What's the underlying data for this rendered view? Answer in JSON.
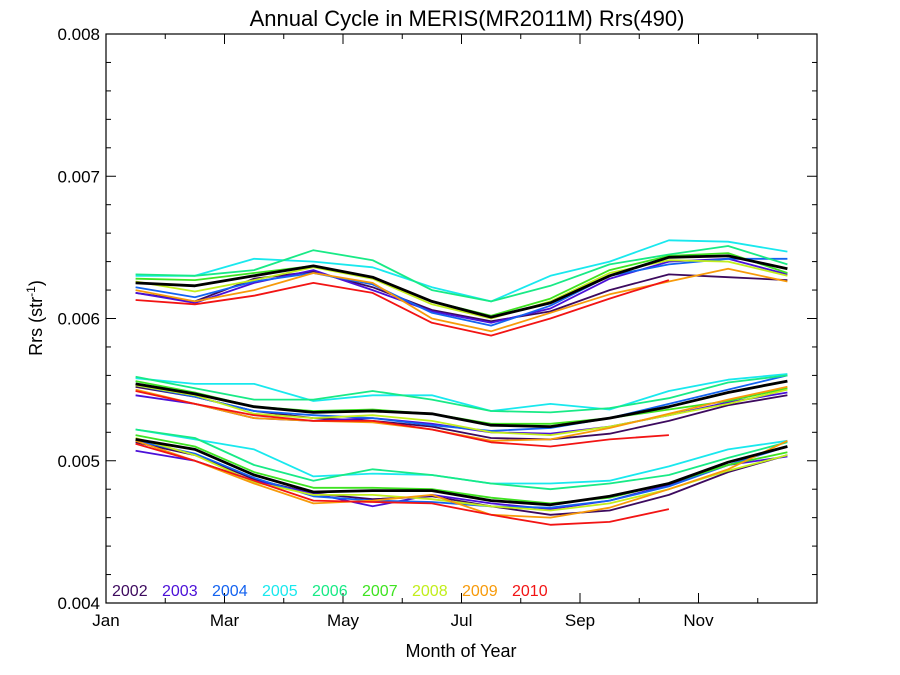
{
  "chart_data": {
    "type": "line",
    "title": "Annual Cycle in MERIS(MR2011M) Rrs(490)",
    "xlabel": "Month of Year",
    "ylabel": "Rrs (str",
    "ylabel_sup": "-1",
    "ylabel_suffix": ")",
    "xlim": [
      0,
      12
    ],
    "ylim": [
      0.004,
      0.008
    ],
    "y_ticks": [
      0.004,
      0.005,
      0.006,
      0.007,
      0.008
    ],
    "y_tick_labels": [
      "0.004",
      "0.005",
      "0.006",
      "0.007",
      "0.008"
    ],
    "x_ticks": [
      0,
      2,
      4,
      6,
      8,
      10
    ],
    "x_tick_labels": [
      "Jan",
      "Mar",
      "May",
      "Jul",
      "Sep",
      "Nov"
    ],
    "grid": false,
    "legend_position": "bottom-left",
    "legend": [
      {
        "name": "2002",
        "color": "#3d0a5e"
      },
      {
        "name": "2003",
        "color": "#4b10d8"
      },
      {
        "name": "2004",
        "color": "#1463f0"
      },
      {
        "name": "2005",
        "color": "#19e8ee"
      },
      {
        "name": "2006",
        "color": "#18ea86"
      },
      {
        "name": "2007",
        "color": "#3fe321"
      },
      {
        "name": "2008",
        "color": "#c2ee1c"
      },
      {
        "name": "2009",
        "color": "#f79a0a"
      },
      {
        "name": "2010",
        "color": "#f21414"
      }
    ],
    "x": [
      0.5,
      1.5,
      2.5,
      3.5,
      4.5,
      5.5,
      6.5,
      7.5,
      8.5,
      9.5,
      10.5,
      11.5
    ],
    "groups": [
      {
        "series": [
          {
            "name": "2002",
            "color": "#3d0a5e",
            "values": [
              0.00618,
              0.00612,
              0.00628,
              0.00633,
              0.00622,
              0.00606,
              0.00598,
              0.00605,
              0.0062,
              0.00631,
              0.00629,
              0.00627
            ]
          },
          {
            "name": "2003",
            "color": "#4b10d8",
            "values": [
              0.00618,
              0.00611,
              0.00625,
              0.00634,
              0.0062,
              0.00605,
              0.00597,
              0.00607,
              0.00628,
              0.0064,
              0.00642,
              0.00631
            ]
          },
          {
            "name": "2004",
            "color": "#1463f0",
            "values": [
              0.00622,
              0.00615,
              0.00626,
              0.00632,
              0.00624,
              0.00604,
              0.00595,
              0.00609,
              0.0063,
              0.00638,
              0.00642,
              0.00642
            ]
          },
          {
            "name": "2005",
            "color": "#19e8ee",
            "values": [
              0.0063,
              0.0063,
              0.00642,
              0.0064,
              0.00636,
              0.00622,
              0.00612,
              0.0063,
              0.0064,
              0.00655,
              0.00654,
              0.00647
            ]
          },
          {
            "name": "2006",
            "color": "#18ea86",
            "values": [
              0.00631,
              0.0063,
              0.00634,
              0.00648,
              0.00641,
              0.0062,
              0.00612,
              0.00623,
              0.00638,
              0.00645,
              0.00651,
              0.00638
            ]
          },
          {
            "name": "2007",
            "color": "#3fe321",
            "values": [
              0.00628,
              0.00627,
              0.00632,
              0.00637,
              0.00629,
              0.00612,
              0.00602,
              0.00614,
              0.00634,
              0.00644,
              0.00646,
              0.00632
            ]
          },
          {
            "name": "2008",
            "color": "#c2ee1c",
            "values": [
              0.00626,
              0.00619,
              0.00627,
              0.00636,
              0.00628,
              0.0061,
              0.006,
              0.00612,
              0.00632,
              0.00641,
              0.0064,
              0.0063
            ]
          },
          {
            "name": "2009",
            "color": "#f79a0a",
            "values": [
              0.0062,
              0.00612,
              0.0062,
              0.00632,
              0.00625,
              0.006,
              0.00591,
              0.00604,
              0.00617,
              0.00626,
              0.00635,
              0.00626
            ]
          },
          {
            "name": "2010",
            "color": "#f21414",
            "values": [
              0.00613,
              0.0061,
              0.00616,
              0.00625,
              0.00618,
              0.00597,
              0.00588,
              0.006,
              0.00614,
              0.00627,
              null,
              null
            ]
          },
          {
            "name": "mean",
            "color": "#000000",
            "values": [
              0.00625,
              0.00623,
              0.0063,
              0.00637,
              0.00629,
              0.00612,
              0.00601,
              0.00611,
              0.0063,
              0.00643,
              0.00644,
              0.00635
            ]
          }
        ]
      },
      {
        "series": [
          {
            "name": "2002",
            "color": "#3d0a5e",
            "values": [
              0.00552,
              0.00545,
              0.00535,
              0.0053,
              0.00528,
              0.00524,
              0.00516,
              0.00515,
              0.00519,
              0.00528,
              0.00539,
              0.00546
            ]
          },
          {
            "name": "2003",
            "color": "#4b10d8",
            "values": [
              0.00546,
              0.0054,
              0.0053,
              0.00528,
              0.0053,
              0.00526,
              0.0052,
              0.00519,
              0.00524,
              0.00532,
              0.00541,
              0.00548
            ]
          },
          {
            "name": "2004",
            "color": "#1463f0",
            "values": [
              0.00553,
              0.00545,
              0.00535,
              0.00532,
              0.0053,
              0.00525,
              0.00521,
              0.00523,
              0.0053,
              0.0054,
              0.0055,
              0.0056
            ]
          },
          {
            "name": "2005",
            "color": "#19e8ee",
            "values": [
              0.00558,
              0.00554,
              0.00554,
              0.00542,
              0.00546,
              0.00546,
              0.00535,
              0.0054,
              0.00536,
              0.00549,
              0.00557,
              0.00561
            ]
          },
          {
            "name": "2006",
            "color": "#18ea86",
            "values": [
              0.00559,
              0.00551,
              0.00543,
              0.00543,
              0.00549,
              0.00543,
              0.00535,
              0.00534,
              0.00537,
              0.00544,
              0.00555,
              0.0056
            ]
          },
          {
            "name": "2007",
            "color": "#3fe321",
            "values": [
              0.00556,
              0.00548,
              0.00538,
              0.00535,
              0.00536,
              0.00533,
              0.00526,
              0.00526,
              0.0053,
              0.00536,
              0.00542,
              0.00551
            ]
          },
          {
            "name": "2008",
            "color": "#c2ee1c",
            "values": [
              0.00553,
              0.00546,
              0.00533,
              0.0053,
              0.00532,
              0.00528,
              0.0052,
              0.00518,
              0.00524,
              0.00532,
              0.0054,
              0.0055
            ]
          },
          {
            "name": "2009",
            "color": "#f79a0a",
            "values": [
              0.0055,
              0.0054,
              0.0053,
              0.00528,
              0.00527,
              0.00522,
              0.00514,
              0.00515,
              0.00523,
              0.00533,
              0.00543,
              0.00552
            ]
          },
          {
            "name": "2010",
            "color": "#f21414",
            "values": [
              0.00549,
              0.0054,
              0.00532,
              0.00528,
              0.00528,
              0.00522,
              0.00513,
              0.0051,
              0.00515,
              0.00518,
              null,
              null
            ]
          },
          {
            "name": "mean",
            "color": "#000000",
            "values": [
              0.00554,
              0.00547,
              0.00538,
              0.00534,
              0.00535,
              0.00533,
              0.00525,
              0.00524,
              0.0053,
              0.00538,
              0.00548,
              0.00556
            ]
          }
        ]
      },
      {
        "series": [
          {
            "name": "2002",
            "color": "#3d0a5e",
            "values": [
              0.00513,
              0.00504,
              0.00487,
              0.00477,
              0.00473,
              0.00475,
              0.00468,
              0.00462,
              0.00465,
              0.00476,
              0.00492,
              0.00504
            ]
          },
          {
            "name": "2003",
            "color": "#4b10d8",
            "values": [
              0.00507,
              0.005,
              0.00486,
              0.00477,
              0.00468,
              0.00476,
              0.0047,
              0.00466,
              0.00472,
              0.00483,
              0.00497,
              0.00503
            ]
          },
          {
            "name": "2004",
            "color": "#1463f0",
            "values": [
              0.00514,
              0.00505,
              0.00488,
              0.00475,
              0.00472,
              0.00471,
              0.00468,
              0.00467,
              0.00472,
              0.00482,
              0.00497,
              0.0051
            ]
          },
          {
            "name": "2005",
            "color": "#19e8ee",
            "values": [
              0.00522,
              0.00515,
              0.00508,
              0.00489,
              0.00491,
              0.0049,
              0.00484,
              0.00484,
              0.00486,
              0.00496,
              0.00508,
              0.00514
            ]
          },
          {
            "name": "2006",
            "color": "#18ea86",
            "values": [
              0.00522,
              0.00516,
              0.00497,
              0.00486,
              0.00494,
              0.0049,
              0.00484,
              0.0048,
              0.00484,
              0.0049,
              0.00502,
              0.00513
            ]
          },
          {
            "name": "2007",
            "color": "#3fe321",
            "values": [
              0.00518,
              0.0051,
              0.00492,
              0.00481,
              0.00481,
              0.0048,
              0.00474,
              0.0047,
              0.00474,
              0.00484,
              0.00497,
              0.00506
            ]
          },
          {
            "name": "2008",
            "color": "#c2ee1c",
            "values": [
              0.00516,
              0.00504,
              0.00485,
              0.00476,
              0.00476,
              0.00473,
              0.00468,
              0.00465,
              0.0047,
              0.0048,
              0.00493,
              0.00504
            ]
          },
          {
            "name": "2009",
            "color": "#f79a0a",
            "values": [
              0.00514,
              0.005,
              0.00484,
              0.0047,
              0.00472,
              0.00476,
              0.00462,
              0.0046,
              0.00467,
              0.0048,
              0.00494,
              0.00514
            ]
          },
          {
            "name": "2010",
            "color": "#f21414",
            "values": [
              0.00512,
              0.005,
              0.00486,
              0.00472,
              0.00471,
              0.0047,
              0.00462,
              0.00455,
              0.00457,
              0.00466,
              null,
              null
            ]
          },
          {
            "name": "mean",
            "color": "#000000",
            "values": [
              0.00515,
              0.00508,
              0.0049,
              0.00478,
              0.00479,
              0.00479,
              0.00472,
              0.00469,
              0.00475,
              0.00484,
              0.00499,
              0.0051
            ]
          }
        ]
      }
    ]
  }
}
